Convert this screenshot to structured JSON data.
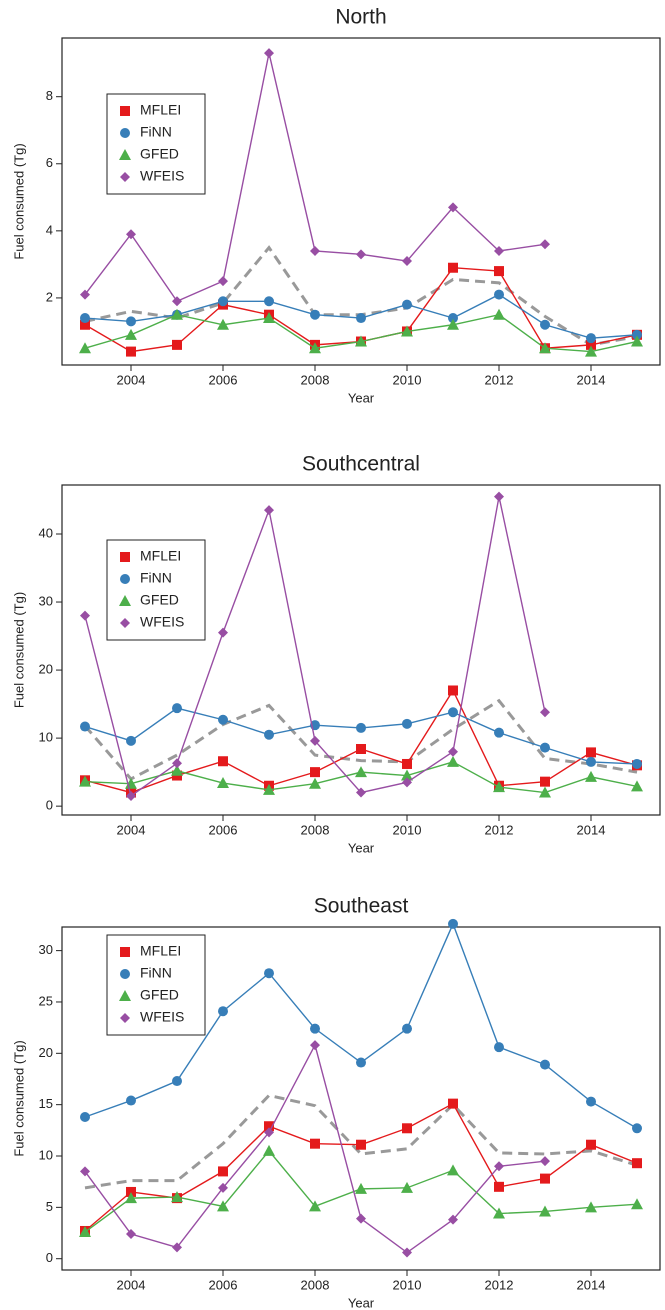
{
  "chart_data": [
    {
      "type": "line",
      "title": "North",
      "x_label": "Year",
      "y_label": "Fuel consumed (Tg)",
      "x": [
        2003,
        2004,
        2005,
        2006,
        2007,
        2008,
        2009,
        2010,
        2011,
        2012,
        2013,
        2014,
        2015
      ],
      "xlim": [
        2002.5,
        2015.5
      ],
      "xticks": [
        2004,
        2006,
        2008,
        2010,
        2012,
        2014
      ],
      "ylim": [
        0,
        9.75
      ],
      "yticks": [
        2,
        4,
        6,
        8
      ],
      "legend": "upper left",
      "series": [
        {
          "name": "MFLEI",
          "color": "#e41a1c",
          "marker": "square",
          "values": [
            1.2,
            0.4,
            0.6,
            1.8,
            1.5,
            0.6,
            0.7,
            1.0,
            2.9,
            2.8,
            0.5,
            0.6,
            0.9
          ]
        },
        {
          "name": "FiNN",
          "color": "#377eb8",
          "marker": "circle",
          "values": [
            1.4,
            1.3,
            1.5,
            1.9,
            1.9,
            1.5,
            1.4,
            1.8,
            1.4,
            2.1,
            1.2,
            0.8,
            0.9
          ]
        },
        {
          "name": "GFED",
          "color": "#4daf4a",
          "marker": "triangle",
          "values": [
            0.5,
            0.9,
            1.5,
            1.2,
            1.4,
            0.5,
            0.7,
            1.0,
            1.2,
            1.5,
            0.5,
            0.4,
            0.7
          ]
        },
        {
          "name": "WFEIS",
          "color": "#984ea3",
          "marker": "diamond",
          "values": [
            2.1,
            3.9,
            1.9,
            2.5,
            9.3,
            3.4,
            3.3,
            3.1,
            4.7,
            3.4,
            3.6,
            null,
            null
          ]
        },
        {
          "color": "#999999",
          "dashed": true,
          "values": [
            1.3,
            1.6,
            1.4,
            1.85,
            3.5,
            1.5,
            1.5,
            1.7,
            2.55,
            2.45,
            1.45,
            0.6,
            0.85
          ]
        }
      ]
    },
    {
      "type": "line",
      "title": "Southcentral",
      "x_label": "Year",
      "y_label": "Fuel consumed (Tg)",
      "x": [
        2003,
        2004,
        2005,
        2006,
        2007,
        2008,
        2009,
        2010,
        2011,
        2012,
        2013,
        2014,
        2015
      ],
      "xlim": [
        2002.5,
        2015.5
      ],
      "xticks": [
        2004,
        2006,
        2008,
        2010,
        2012,
        2014
      ],
      "ylim": [
        -1.3,
        47.2
      ],
      "yticks": [
        0,
        10,
        20,
        30,
        40
      ],
      "legend": "upper left",
      "series": [
        {
          "name": "MFLEI",
          "color": "#e41a1c",
          "marker": "square",
          "values": [
            3.8,
            2.0,
            4.5,
            6.6,
            3.0,
            5.0,
            8.4,
            6.2,
            17.0,
            3.0,
            3.6,
            7.9,
            6.0
          ]
        },
        {
          "name": "FiNN",
          "color": "#377eb8",
          "marker": "circle",
          "values": [
            11.7,
            9.6,
            14.4,
            12.7,
            10.5,
            11.9,
            11.5,
            12.1,
            13.8,
            10.8,
            8.6,
            6.5,
            6.2
          ]
        },
        {
          "name": "GFED",
          "color": "#4daf4a",
          "marker": "triangle",
          "values": [
            3.6,
            3.3,
            5.2,
            3.4,
            2.4,
            3.3,
            5.0,
            4.5,
            6.5,
            2.8,
            2.0,
            4.3,
            2.9
          ]
        },
        {
          "name": "WFEIS",
          "color": "#984ea3",
          "marker": "diamond",
          "values": [
            28.0,
            1.5,
            6.3,
            25.5,
            43.5,
            9.6,
            2.0,
            3.5,
            8.0,
            45.5,
            13.8,
            null,
            null
          ]
        },
        {
          "color": "#999999",
          "dashed": true,
          "values": [
            11.8,
            4.0,
            7.5,
            12.0,
            14.8,
            7.5,
            6.7,
            6.5,
            11.3,
            15.5,
            7.0,
            6.2,
            5.0
          ]
        }
      ]
    },
    {
      "type": "line",
      "title": "Southeast",
      "x_label": "Year",
      "y_label": "Fuel consumed (Tg)",
      "x": [
        2003,
        2004,
        2005,
        2006,
        2007,
        2008,
        2009,
        2010,
        2011,
        2012,
        2013,
        2014,
        2015
      ],
      "xlim": [
        2002.5,
        2015.5
      ],
      "xticks": [
        2004,
        2006,
        2008,
        2010,
        2012,
        2014
      ],
      "ylim": [
        -1.1,
        32.3
      ],
      "yticks": [
        0,
        5,
        10,
        15,
        20,
        25,
        30
      ],
      "legend": "upper left",
      "series": [
        {
          "name": "MFLEI",
          "color": "#e41a1c",
          "marker": "square",
          "values": [
            2.7,
            6.5,
            5.9,
            8.5,
            12.9,
            11.2,
            11.1,
            12.7,
            15.1,
            7.0,
            7.8,
            11.1,
            9.3
          ]
        },
        {
          "name": "FiNN",
          "color": "#377eb8",
          "marker": "circle",
          "values": [
            13.8,
            15.4,
            17.3,
            24.1,
            27.8,
            22.4,
            19.1,
            22.4,
            32.6,
            20.6,
            18.9,
            15.3,
            12.7
          ]
        },
        {
          "name": "GFED",
          "color": "#4daf4a",
          "marker": "triangle",
          "values": [
            2.6,
            5.9,
            6.0,
            5.1,
            10.5,
            5.1,
            6.8,
            6.9,
            8.6,
            4.4,
            4.6,
            5.0,
            5.3
          ]
        },
        {
          "name": "WFEIS",
          "color": "#984ea3",
          "marker": "diamond",
          "values": [
            8.5,
            2.4,
            1.1,
            6.9,
            12.3,
            20.8,
            3.9,
            0.6,
            3.8,
            9.0,
            9.5,
            null,
            null
          ]
        },
        {
          "color": "#999999",
          "dashed": true,
          "values": [
            6.9,
            7.6,
            7.6,
            11.2,
            15.9,
            14.9,
            10.2,
            10.7,
            15.0,
            10.3,
            10.2,
            10.5,
            9.1
          ]
        }
      ]
    }
  ]
}
